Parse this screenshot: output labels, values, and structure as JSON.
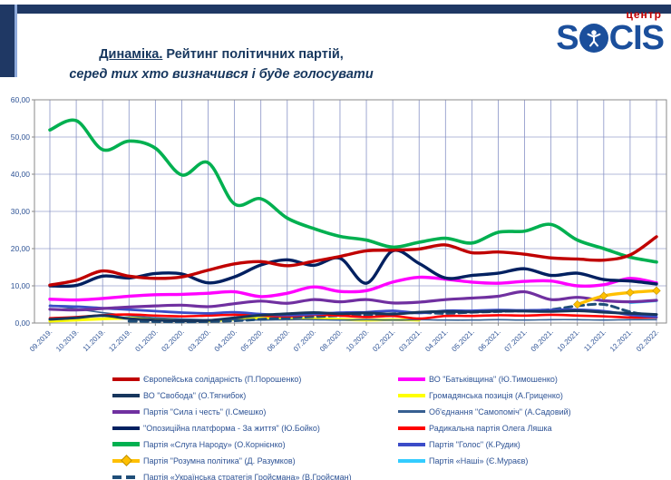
{
  "header": {
    "title_part1": "Динаміка.",
    "title_part2": " Рейтинг політичних партій,",
    "title_line2": "серед тих хто визначився і буде голосувати",
    "logo": {
      "part1": "S",
      "person_icon": "person-in-circle-icon",
      "part2": "CIS",
      "tagline": "центр",
      "blue": "#1B4F9C",
      "red": "#C00000"
    }
  },
  "colors": {
    "header_navy": "#1F3864",
    "title_text": "#17375E",
    "axis_text": "#2F5496",
    "legend_text": "#2E5395",
    "plot_border": "#8a8a8a",
    "grid_h": "#b3b9d9",
    "grid_v": "#8893c6"
  },
  "chart_data": {
    "type": "line",
    "title": "Динаміка. Рейтинг політичних партій, серед тих хто визначився і буде голосувати",
    "xlabel": "",
    "ylabel": "",
    "ylim": [
      0,
      60
    ],
    "grid": true,
    "legend_position": "bottom",
    "yticks": [
      "0,00",
      "10,00",
      "20,00",
      "30,00",
      "40,00",
      "50,00",
      "60,00"
    ],
    "categories": [
      "09.2019.",
      "10.2019.",
      "11.2019.",
      "12.2019.",
      "01.2020.",
      "02.2020.",
      "03.2020.",
      "04.2020.",
      "05.2020.",
      "06.2020.",
      "07.2020.",
      "08.2020.",
      "10.2020.",
      "02.2021.",
      "03.2021.",
      "04.2021.",
      "05.2021.",
      "06.2021.",
      "07.2021.",
      "09.2021.",
      "10.2021.",
      "11.2021.",
      "12.2021.",
      "02.2022."
    ],
    "draw_order": [
      8,
      9,
      6,
      10,
      11,
      1,
      12,
      2,
      7,
      3,
      4,
      0,
      5
    ],
    "series": [
      {
        "key": "yevropeiska-solidarnist",
        "name": "Європейська солідарність (П.Порошенко)",
        "color": "#C00000",
        "width": 3.4,
        "dash": false,
        "marker": null,
        "values": [
          10.2,
          11.5,
          14.0,
          12.6,
          12.0,
          12.4,
          14.2,
          15.9,
          16.5,
          15.4,
          16.6,
          17.9,
          19.4,
          19.6,
          19.9,
          21.0,
          18.9,
          19.1,
          18.5,
          17.5,
          17.2,
          16.9,
          18.3,
          23.2
        ]
      },
      {
        "key": "svoboda",
        "name": "ВО \"Свобода\" (О.Тягнибок)",
        "color": "#17365D",
        "width": 3.0,
        "dash": false,
        "marker": null,
        "values": [
          1.0,
          1.4,
          2.0,
          1.2,
          0.8,
          0.6,
          0.7,
          1.4,
          2.1,
          2.5,
          2.8,
          2.5,
          2.7,
          2.4,
          2.9,
          3.1,
          3.0,
          3.2,
          3.2,
          3.1,
          3.3,
          2.9,
          2.6,
          2.3
        ]
      },
      {
        "key": "syla-i-chest",
        "name": "Партія \"Сила і честь\" (І.Смешко)",
        "color": "#7030A0",
        "width": 3.2,
        "dash": false,
        "marker": null,
        "values": [
          3.7,
          3.5,
          3.9,
          4.3,
          4.6,
          4.8,
          4.4,
          5.2,
          5.9,
          5.3,
          6.3,
          5.7,
          6.3,
          5.4,
          5.6,
          6.3,
          6.7,
          7.2,
          8.4,
          6.3,
          6.9,
          6.0,
          5.7,
          6.1
        ]
      },
      {
        "key": "opzzh",
        "name": "\"Опозиційна платформа - За життя\" (Ю.Бойко)",
        "color": "#002060",
        "width": 3.4,
        "dash": false,
        "marker": null,
        "values": [
          10.0,
          10.1,
          12.6,
          12.1,
          13.3,
          13.2,
          10.8,
          12.4,
          15.6,
          17.0,
          15.5,
          17.4,
          10.7,
          19.4,
          16.0,
          12.1,
          12.8,
          13.4,
          14.6,
          12.8,
          13.4,
          11.7,
          11.3,
          10.5
        ]
      },
      {
        "key": "sluha-narodu",
        "name": "Партія «Слуга Народу» (О.Корнієнко)",
        "color": "#00B050",
        "width": 3.6,
        "dash": false,
        "marker": null,
        "values": [
          51.9,
          54.4,
          46.6,
          48.9,
          47.0,
          39.8,
          43.1,
          32.0,
          33.4,
          28.2,
          25.4,
          23.3,
          22.3,
          20.4,
          21.7,
          22.8,
          21.5,
          24.4,
          24.7,
          26.5,
          22.3,
          20.0,
          17.7,
          16.4
        ]
      },
      {
        "key": "rozumna-polityka",
        "name": "Партія \"Розумна політика\" (Д. Разумков)",
        "color": "#FFC000",
        "width": 3.4,
        "dash": false,
        "marker": "diamond",
        "values": [
          null,
          null,
          null,
          null,
          null,
          null,
          null,
          null,
          null,
          null,
          null,
          null,
          null,
          null,
          null,
          null,
          null,
          null,
          null,
          null,
          5.0,
          7.3,
          8.2,
          8.7
        ]
      },
      {
        "key": "ukrainska-stratehiia-hroismana",
        "name": "Партія «Українська стратегія Гройсмана» (В.Гройсман)",
        "color": "#1F4E79",
        "width": 3.0,
        "dash": true,
        "marker": null,
        "values": [
          null,
          null,
          null,
          0.5,
          0.4,
          0.3,
          0.4,
          0.6,
          1.0,
          1.4,
          1.7,
          2.0,
          2.2,
          2.5,
          2.8,
          2.6,
          2.9,
          3.1,
          3.3,
          3.6,
          4.6,
          5.0,
          3.0,
          1.8
        ]
      },
      {
        "key": "batkivshchyna",
        "name": "ВО \"Батьківщина\" (Ю.Тимошенко)",
        "color": "#FF00FF",
        "width": 3.4,
        "dash": false,
        "marker": null,
        "values": [
          6.4,
          6.2,
          6.6,
          7.2,
          7.6,
          7.7,
          8.0,
          8.4,
          7.1,
          8.0,
          9.7,
          8.5,
          8.7,
          11.0,
          12.3,
          11.8,
          11.0,
          10.7,
          11.2,
          11.3,
          10.0,
          10.3,
          12.0,
          10.8
        ]
      },
      {
        "key": "hromadianska-pozytsiia",
        "name": "Громадянська позиція (А.Гриценко)",
        "color": "#FFFF00",
        "width": 3.2,
        "dash": false,
        "marker": null,
        "values": [
          0.5,
          0.8,
          1.1,
          1.3,
          1.0,
          0.8,
          0.6,
          1.0,
          1.3,
          1.1,
          1.2,
          1.0,
          0.8,
          0.9,
          0.8,
          null,
          null,
          null,
          null,
          null,
          null,
          null,
          null,
          null
        ]
      },
      {
        "key": "samopomich",
        "name": "Об'єднання \"Самопоміч\" (А.Садовий)",
        "color": "#365F91",
        "width": 1.6,
        "dash": false,
        "marker": null,
        "values": [
          4.8,
          3.8,
          2.8,
          2.0,
          1.4,
          1.1,
          0.9,
          0.9,
          0.8,
          0.9,
          0.9,
          0.8,
          0.9,
          0.8,
          0.9,
          0.8,
          0.8,
          0.9,
          0.8,
          0.9,
          0.9,
          0.8,
          0.9,
          0.9
        ]
      },
      {
        "key": "radykalna-partiia",
        "name": "Радикальна партія Олега Ляшка",
        "color": "#FF0000",
        "width": 2.6,
        "dash": false,
        "marker": null,
        "values": [
          1.3,
          1.6,
          2.1,
          2.3,
          2.0,
          1.8,
          2.0,
          2.2,
          2.0,
          1.8,
          2.2,
          2.0,
          1.6,
          1.9,
          1.2,
          1.9,
          1.9,
          2.1,
          2.0,
          2.2,
          2.0,
          1.8,
          1.5,
          1.5
        ]
      },
      {
        "key": "holos",
        "name": "Партія \"Голос\" (К.Рудик)",
        "color": "#3B4CC8",
        "width": 2.8,
        "dash": false,
        "marker": null,
        "values": [
          4.6,
          4.4,
          4.0,
          3.6,
          3.2,
          2.8,
          2.6,
          2.9,
          2.4,
          2.1,
          2.4,
          2.8,
          2.9,
          3.3,
          2.7,
          3.3,
          3.3,
          3.5,
          3.4,
          3.5,
          3.6,
          3.2,
          2.2,
          1.6
        ]
      },
      {
        "key": "nashi",
        "name": "Партія «Наші» (Є.Мураєв)",
        "color": "#33CCFF",
        "width": 3.2,
        "dash": false,
        "marker": null,
        "values": [
          null,
          null,
          null,
          null,
          null,
          null,
          null,
          null,
          null,
          null,
          null,
          null,
          null,
          null,
          null,
          null,
          null,
          null,
          null,
          null,
          null,
          null,
          5.5,
          6.0
        ]
      }
    ]
  },
  "legend": {
    "columns": [
      [
        0,
        1,
        2,
        3,
        4,
        5,
        6
      ],
      [
        7,
        8,
        9,
        10,
        11,
        12
      ]
    ]
  }
}
